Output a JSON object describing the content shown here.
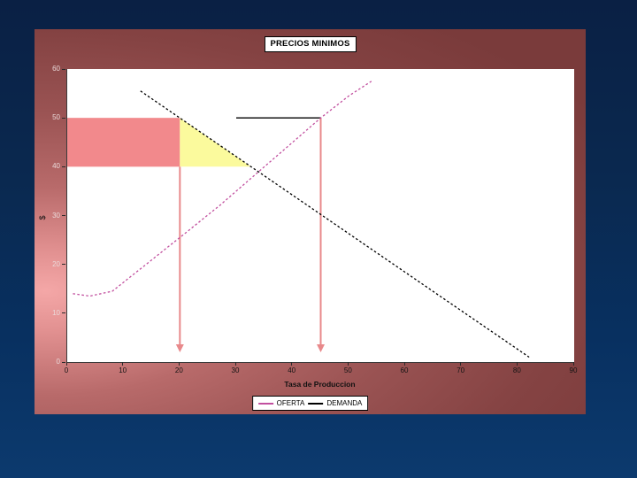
{
  "chart_data": {
    "type": "line",
    "title": "PRECIOS MINIMOS",
    "xlabel": "Tasa de Produccion",
    "ylabel": "$",
    "xlim": [
      0,
      90
    ],
    "ylim": [
      0,
      60
    ],
    "x_ticks": [
      0,
      10,
      20,
      30,
      40,
      50,
      60,
      70,
      80,
      90
    ],
    "y_ticks": [
      0,
      10,
      20,
      30,
      40,
      50,
      60
    ],
    "grid": false,
    "legend_position": "bottom-center",
    "series": [
      {
        "name": "OFERTA",
        "color": "#c2509f",
        "line_style": "dashed",
        "points": [
          [
            1,
            14
          ],
          [
            4,
            13.5
          ],
          [
            8,
            14.5
          ],
          [
            14,
            20
          ],
          [
            20,
            25.5
          ],
          [
            27,
            32
          ],
          [
            34,
            39
          ],
          [
            40,
            45
          ],
          [
            45,
            50
          ],
          [
            50,
            54.5
          ],
          [
            54,
            57.5
          ]
        ]
      },
      {
        "name": "DEMANDA",
        "color": "#000000",
        "line_style": "dashed",
        "points": [
          [
            13,
            55.5
          ],
          [
            82,
            1
          ]
        ]
      }
    ],
    "annotations": {
      "price_floor": {
        "y": 50,
        "x_start": 30,
        "x_end": 45,
        "color": "#000000"
      },
      "producer_transfer_rect": {
        "x": [
          0,
          20
        ],
        "y": [
          40,
          50
        ],
        "fill": "#f2898c"
      },
      "deadweight_triangle": {
        "points": [
          [
            20,
            50
          ],
          [
            20,
            40
          ],
          [
            32.6,
            40
          ]
        ],
        "fill": "#fbfa9d"
      },
      "quantity_arrows": [
        {
          "x": 20,
          "from_y": 40,
          "to_y": 2
        },
        {
          "x": 45,
          "from_y": 50,
          "to_y": 2
        }
      ],
      "arrow_color": "#e8898b"
    }
  }
}
